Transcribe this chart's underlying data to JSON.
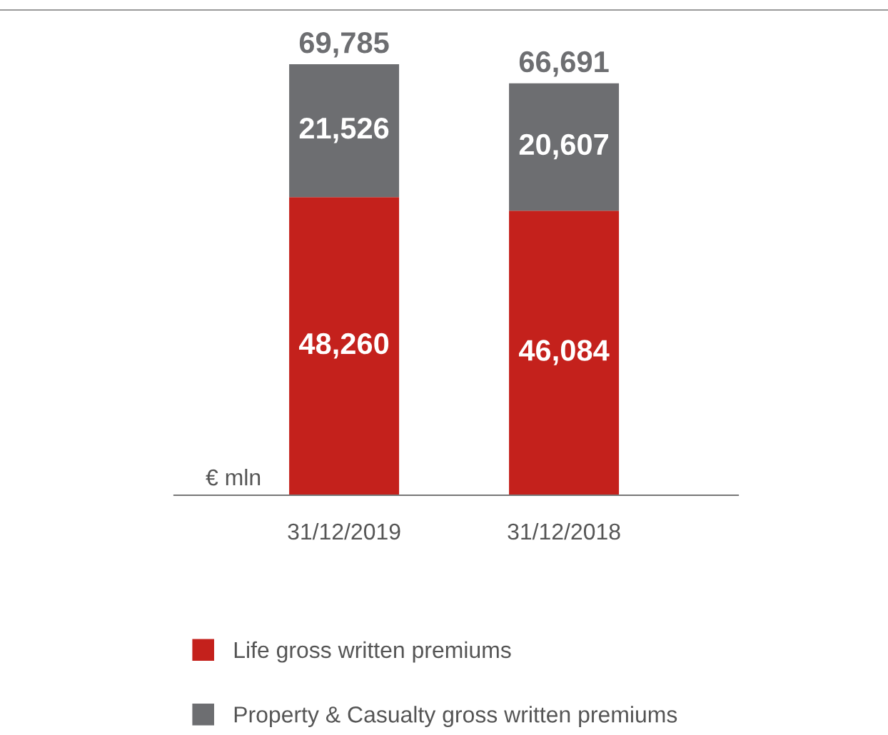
{
  "chart_data": {
    "type": "bar",
    "stacked": true,
    "categories": [
      "31/12/2019",
      "31/12/2018"
    ],
    "series": [
      {
        "name": "Life gross written premiums",
        "color": "#c4211c",
        "values": [
          48260,
          46084
        ],
        "value_labels": [
          "48,260",
          "46,084"
        ]
      },
      {
        "name": "Property & Casualty gross written premiums",
        "color": "#6d6e71",
        "values": [
          21526,
          20607
        ],
        "value_labels": [
          "21,526",
          "20,607"
        ]
      }
    ],
    "totals": [
      "69,785",
      "66,691"
    ],
    "annotations": [
      "€ mln"
    ],
    "legend": "bottom",
    "grid": false
  }
}
